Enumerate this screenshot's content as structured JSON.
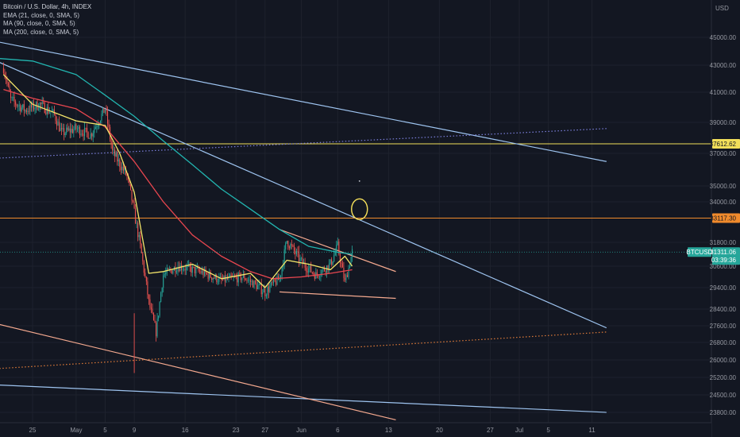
{
  "legend": {
    "title": "Bitcoin / U.S. Dollar, 4h, INDEX",
    "studies": [
      "EMA (21, close, 0, SMA, 5)",
      "MA (90, close, 0, SMA, 5)",
      "MA (200, close, 0, SMA, 5)"
    ]
  },
  "currency": "USD",
  "colors": {
    "background": "#131722",
    "up": "#26a69a",
    "down": "#ef5350",
    "ema21": "#f5e66a",
    "ma90": "#e8464f",
    "ma200": "#22b5b0",
    "trend_blue": "#9ec4f0",
    "trend_salmon": "#f4a98f",
    "level_yellow": "#f2df5a",
    "level_orange": "#f08a2c",
    "circle": "#f7e15a"
  },
  "chart_data": {
    "type": "candlestick",
    "symbol": "BTCUSD",
    "timeframe": "4h",
    "y_ticks": [
      45000,
      43000,
      41000,
      39000,
      37000,
      35000,
      34000,
      31800,
      30600,
      29400,
      28400,
      27600,
      26800,
      26000,
      25200,
      24500,
      23800
    ],
    "x_ticks": [
      "25",
      "May",
      "5",
      "9",
      "16",
      "23",
      "27",
      "Jun",
      "6",
      "13",
      "20",
      "27",
      "Jul",
      "5",
      "11"
    ],
    "x_tick_dates": [
      "2021-04-25",
      "2021-05-01",
      "2021-05-05",
      "2021-05-09",
      "2021-05-16",
      "2021-05-23",
      "2021-05-27",
      "2021-06-01",
      "2021-06-06",
      "2021-06-13",
      "2021-06-20",
      "2021-06-27",
      "2021-07-01",
      "2021-07-05",
      "2021-07-11"
    ],
    "close_path": [
      [
        "2021-04-21",
        42800
      ],
      [
        "2021-04-22",
        40500
      ],
      [
        "2021-04-24",
        39800
      ],
      [
        "2021-04-26",
        40200
      ],
      [
        "2021-04-28",
        39500
      ],
      [
        "2021-04-29",
        38300
      ],
      [
        "2021-05-01",
        38600
      ],
      [
        "2021-05-03",
        38200
      ],
      [
        "2021-05-05",
        39900
      ],
      [
        "2021-05-06",
        37100
      ],
      [
        "2021-05-08",
        35600
      ],
      [
        "2021-05-09",
        33400
      ],
      [
        "2021-05-10",
        31200
      ],
      [
        "2021-05-11",
        28700
      ],
      [
        "2021-05-12",
        27300
      ],
      [
        "2021-05-13",
        30100
      ],
      [
        "2021-05-15",
        30600
      ],
      [
        "2021-05-18",
        30300
      ],
      [
        "2021-05-21",
        29800
      ],
      [
        "2021-05-24",
        30000
      ],
      [
        "2021-05-27",
        29200
      ],
      [
        "2021-05-29",
        29900
      ],
      [
        "2021-05-30",
        31900
      ],
      [
        "2021-06-01",
        30800
      ],
      [
        "2021-06-03",
        30100
      ],
      [
        "2021-06-05",
        30700
      ],
      [
        "2021-06-06",
        31600
      ],
      [
        "2021-06-07",
        29700
      ],
      [
        "2021-06-08",
        31311
      ]
    ],
    "extremes": {
      "low": [
        "2021-05-09",
        25400
      ],
      "high": [
        "2021-04-21",
        43300
      ]
    },
    "ema21": [
      [
        "2021-04-21",
        42300
      ],
      [
        "2021-04-25",
        40200
      ],
      [
        "2021-05-01",
        39100
      ],
      [
        "2021-05-05",
        38800
      ],
      [
        "2021-05-07",
        37000
      ],
      [
        "2021-05-09",
        34600
      ],
      [
        "2021-05-11",
        30200
      ],
      [
        "2021-05-13",
        30300
      ],
      [
        "2021-05-17",
        30700
      ],
      [
        "2021-05-21",
        29900
      ],
      [
        "2021-05-25",
        30200
      ],
      [
        "2021-05-27",
        29400
      ],
      [
        "2021-05-30",
        30900
      ],
      [
        "2021-06-02",
        30700
      ],
      [
        "2021-06-05",
        30400
      ],
      [
        "2021-06-07",
        31100
      ],
      [
        "2021-06-08",
        30600
      ]
    ],
    "ma90": [
      [
        "2021-04-21",
        41200
      ],
      [
        "2021-04-25",
        40600
      ],
      [
        "2021-05-01",
        39900
      ],
      [
        "2021-05-05",
        38700
      ],
      [
        "2021-05-09",
        36500
      ],
      [
        "2021-05-13",
        34000
      ],
      [
        "2021-05-17",
        32200
      ],
      [
        "2021-05-21",
        31100
      ],
      [
        "2021-05-25",
        30300
      ],
      [
        "2021-05-28",
        29900
      ],
      [
        "2021-06-01",
        30000
      ],
      [
        "2021-06-05",
        30200
      ],
      [
        "2021-06-08",
        30400
      ]
    ],
    "ma200": [
      [
        "2021-04-20",
        43500
      ],
      [
        "2021-04-25",
        43300
      ],
      [
        "2021-05-01",
        42300
      ],
      [
        "2021-05-05",
        40800
      ],
      [
        "2021-05-09",
        39400
      ],
      [
        "2021-05-13",
        37800
      ],
      [
        "2021-05-17",
        36300
      ],
      [
        "2021-05-21",
        34800
      ],
      [
        "2021-05-25",
        33600
      ],
      [
        "2021-05-29",
        32500
      ],
      [
        "2021-06-02",
        31600
      ],
      [
        "2021-06-06",
        31300
      ],
      [
        "2021-06-08",
        31200
      ]
    ],
    "drawings": {
      "horizontal_levels": [
        {
          "price": 37612.62,
          "label": "37612.62",
          "color": "#f2df5a"
        },
        {
          "price": 33117.3,
          "label": "33117.30",
          "color": "#f08a2c"
        }
      ],
      "trendlines": [
        {
          "from": [
            "2021-04-20",
            44700
          ],
          "to": [
            "2021-07-13",
            36500
          ],
          "color": "#9ec4f0",
          "style": "solid"
        },
        {
          "from": [
            "2021-04-20",
            43300
          ],
          "to": [
            "2021-07-13",
            27500
          ],
          "color": "#9ec4f0",
          "style": "solid"
        },
        {
          "from": [
            "2021-04-20",
            24900
          ],
          "to": [
            "2021-07-13",
            23800
          ],
          "color": "#9ec4f0",
          "style": "solid"
        },
        {
          "from": [
            "2021-04-20",
            36700
          ],
          "to": [
            "2021-07-13",
            38600
          ],
          "color": "#7b7fdb",
          "style": "dotted"
        },
        {
          "from": [
            "2021-05-29",
            32500
          ],
          "to": [
            "2021-06-14",
            30300
          ],
          "color": "#f4a98f",
          "style": "solid"
        },
        {
          "from": [
            "2021-05-29",
            29200
          ],
          "to": [
            "2021-06-14",
            28900
          ],
          "color": "#f4a98f",
          "style": "solid"
        },
        {
          "from": [
            "2021-04-20",
            27700
          ],
          "to": [
            "2021-06-14",
            23500
          ],
          "color": "#f4a98f",
          "style": "solid"
        },
        {
          "from": [
            "2021-04-20",
            25600
          ],
          "to": [
            "2021-07-13",
            27300
          ],
          "color": "#e07b39",
          "style": "dotted"
        }
      ],
      "ellipse": {
        "center": [
          "2021-06-09",
          33600
        ],
        "color": "#f7e15a"
      },
      "dot": [
        "2021-06-09",
        35300
      ]
    }
  },
  "price_tags": [
    {
      "text": "37612.62",
      "color": "#f2df5a",
      "text_color": "#131722",
      "price": 37612.62
    },
    {
      "text": "33117.30",
      "color": "#f08a2c",
      "text_color": "#131722",
      "price": 33117.3
    }
  ],
  "current_price": {
    "symbol": "BTCUSD",
    "price": "31311.06",
    "countdown": "03:39:36",
    "color": "#26a69a",
    "value": 31311.06
  }
}
